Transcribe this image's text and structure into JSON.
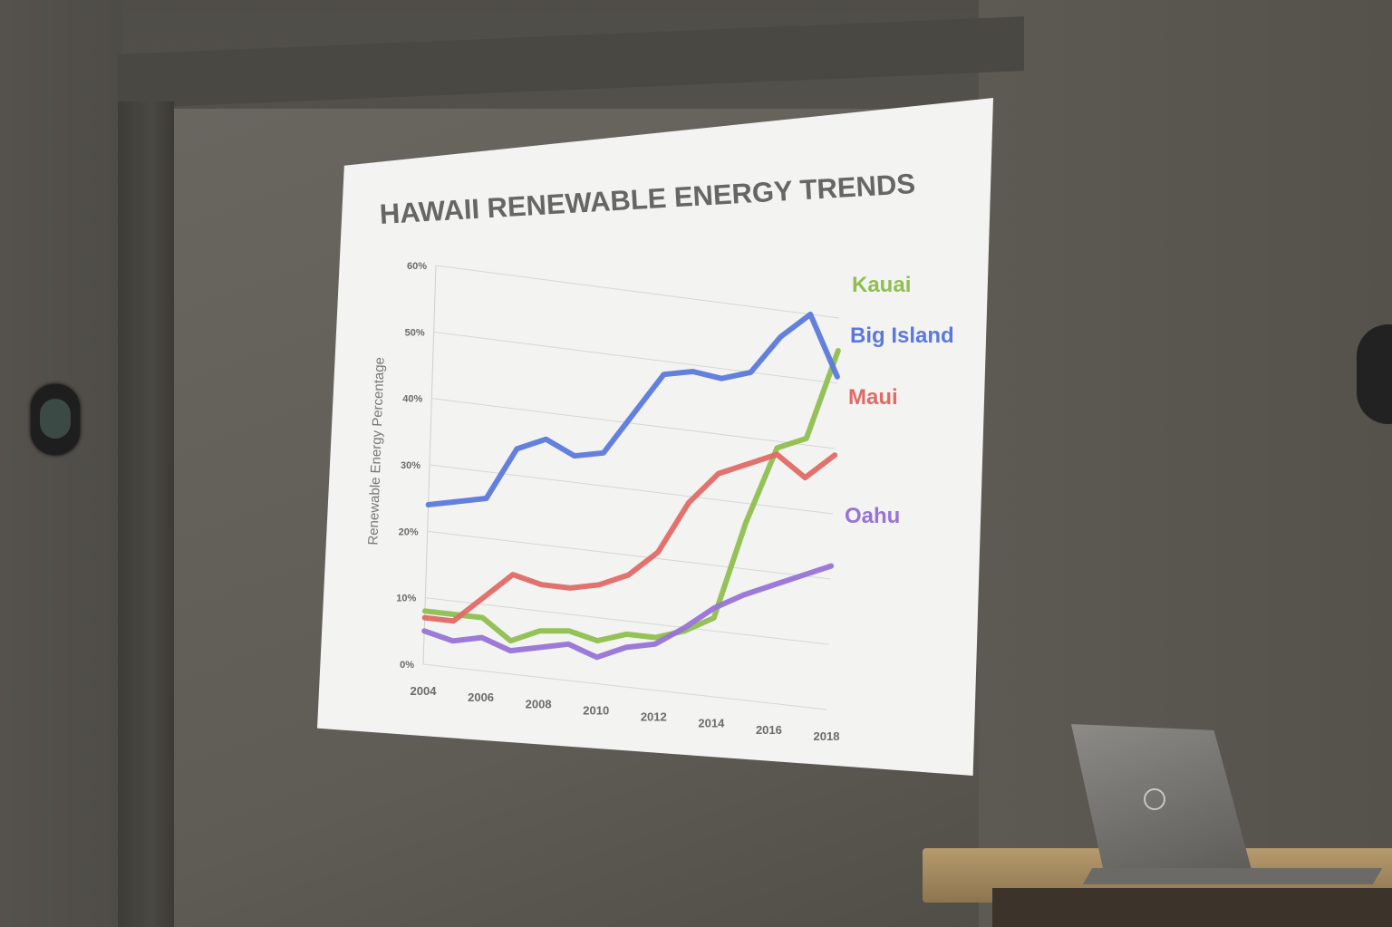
{
  "chart_data": {
    "type": "line",
    "title": "HAWAII RENEWABLE ENERGY TRENDS",
    "xlabel": "",
    "ylabel": "Renewable Energy Percentage",
    "x": [
      2004,
      2005,
      2006,
      2007,
      2008,
      2009,
      2010,
      2011,
      2012,
      2013,
      2014,
      2015,
      2016,
      2017,
      2018
    ],
    "x_ticks": [
      "2004",
      "2006",
      "2008",
      "2010",
      "2012",
      "2014",
      "2016",
      "2018"
    ],
    "y_ticks": [
      "0%",
      "10%",
      "20%",
      "30%",
      "40%",
      "50%",
      "60%"
    ],
    "ylim": [
      0,
      60
    ],
    "grid": true,
    "legend": "right, labels at line ends",
    "series": [
      {
        "name": "Kauai",
        "color": "#8fbf4f",
        "values": [
          8,
          8,
          8,
          5,
          7,
          7.5,
          6.5,
          8,
          8,
          9.5,
          12,
          27,
          39,
          41,
          55
        ]
      },
      {
        "name": "Big Island",
        "color": "#5b79dd",
        "values": [
          24,
          25,
          26,
          34,
          36,
          34,
          35,
          41.5,
          48,
          49,
          48.5,
          50,
          56,
          60,
          51
        ]
      },
      {
        "name": "Maui",
        "color": "#e06a66",
        "values": [
          7,
          7,
          11,
          15,
          14,
          14,
          15,
          17,
          21,
          29,
          34,
          36,
          38,
          35,
          39
        ]
      },
      {
        "name": "Oahu",
        "color": "#9873d6",
        "values": [
          5,
          4,
          5,
          3.5,
          4.5,
          5.5,
          4,
          6,
          7,
          10,
          13.5,
          16,
          18,
          20,
          22
        ]
      }
    ]
  }
}
